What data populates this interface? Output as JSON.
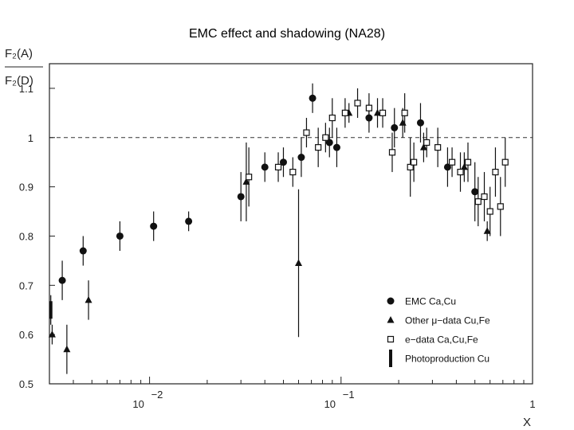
{
  "slide_title": "EMC effect and shadowing (NA28)",
  "chart_data": {
    "type": "scatter",
    "title": "EMC effect and shadowing (NA28)",
    "ylabel_numerator": "F₂(A)",
    "ylabel_denominator": "F₂(D)",
    "xlabel": "X",
    "x_scale": "log",
    "xlim": [
      0.003,
      1.0
    ],
    "ylim": [
      0.5,
      1.15
    ],
    "y_ticks": [
      {
        "v": 0.5,
        "label": "0.5"
      },
      {
        "v": 0.6,
        "label": "0.6"
      },
      {
        "v": 0.7,
        "label": "0.7"
      },
      {
        "v": 0.8,
        "label": "0.8"
      },
      {
        "v": 0.9,
        "label": "0.9"
      },
      {
        "v": 1.0,
        "label": "1"
      },
      {
        "v": 1.1,
        "label": "1.1"
      }
    ],
    "x_ticks": [
      {
        "v": 0.01,
        "base": "10",
        "exp": "−2"
      },
      {
        "v": 0.1,
        "base": "10",
        "exp": "−1"
      },
      {
        "v": 1.0,
        "base": "1",
        "exp": ""
      }
    ],
    "reference_line": 1.0,
    "legend": [
      {
        "marker": "circle",
        "label": "EMC  Ca,Cu"
      },
      {
        "marker": "triangle",
        "label": "Other μ−data  Cu,Fe"
      },
      {
        "marker": "square",
        "label": "e−data  Ca,Cu,Fe"
      },
      {
        "marker": "bar",
        "label": "Photoproduction  Cu"
      }
    ],
    "series": [
      {
        "name": "EMC  Ca,Cu",
        "marker": "circle",
        "points": [
          {
            "x": 0.0035,
            "y": 0.71,
            "err": 0.04
          },
          {
            "x": 0.0045,
            "y": 0.77,
            "err": 0.03
          },
          {
            "x": 0.007,
            "y": 0.8,
            "err": 0.03
          },
          {
            "x": 0.0105,
            "y": 0.82,
            "err": 0.03
          },
          {
            "x": 0.016,
            "y": 0.83,
            "err": 0.02
          },
          {
            "x": 0.03,
            "y": 0.88,
            "err": 0.05
          },
          {
            "x": 0.04,
            "y": 0.94,
            "err": 0.03
          },
          {
            "x": 0.05,
            "y": 0.95,
            "err": 0.03
          },
          {
            "x": 0.062,
            "y": 0.96,
            "err": 0.04
          },
          {
            "x": 0.071,
            "y": 1.08,
            "err": 0.03
          },
          {
            "x": 0.087,
            "y": 0.99,
            "err": 0.03
          },
          {
            "x": 0.095,
            "y": 0.98,
            "err": 0.04
          },
          {
            "x": 0.14,
            "y": 1.04,
            "err": 0.03
          },
          {
            "x": 0.19,
            "y": 1.02,
            "err": 0.04
          },
          {
            "x": 0.26,
            "y": 1.03,
            "err": 0.04
          },
          {
            "x": 0.36,
            "y": 0.94,
            "err": 0.04
          },
          {
            "x": 0.5,
            "y": 0.89,
            "err": 0.06
          }
        ]
      },
      {
        "name": "Other μ−data  Cu,Fe",
        "marker": "triangle",
        "points": [
          {
            "x": 0.0031,
            "y": 0.6,
            "err": 0.02
          },
          {
            "x": 0.0037,
            "y": 0.57,
            "err": 0.05
          },
          {
            "x": 0.0048,
            "y": 0.67,
            "err": 0.04
          },
          {
            "x": 0.032,
            "y": 0.91,
            "err": 0.08
          },
          {
            "x": 0.06,
            "y": 0.745,
            "err": 0.15
          },
          {
            "x": 0.11,
            "y": 1.05,
            "err": 0.02
          },
          {
            "x": 0.155,
            "y": 1.05,
            "err": 0.03
          },
          {
            "x": 0.21,
            "y": 1.03,
            "err": 0.03
          },
          {
            "x": 0.27,
            "y": 0.98,
            "err": 0.03
          },
          {
            "x": 0.44,
            "y": 0.94,
            "err": 0.03
          },
          {
            "x": 0.58,
            "y": 0.81,
            "err": 0.02
          }
        ]
      },
      {
        "name": "e−data  Ca,Cu,Fe",
        "marker": "square",
        "points": [
          {
            "x": 0.033,
            "y": 0.92,
            "err": 0.06
          },
          {
            "x": 0.047,
            "y": 0.94,
            "err": 0.03
          },
          {
            "x": 0.056,
            "y": 0.93,
            "err": 0.03
          },
          {
            "x": 0.066,
            "y": 1.01,
            "err": 0.03
          },
          {
            "x": 0.076,
            "y": 0.98,
            "err": 0.04
          },
          {
            "x": 0.083,
            "y": 1.0,
            "err": 0.03
          },
          {
            "x": 0.09,
            "y": 1.04,
            "err": 0.04
          },
          {
            "x": 0.105,
            "y": 1.05,
            "err": 0.03
          },
          {
            "x": 0.122,
            "y": 1.07,
            "err": 0.03
          },
          {
            "x": 0.14,
            "y": 1.06,
            "err": 0.03
          },
          {
            "x": 0.165,
            "y": 1.05,
            "err": 0.03
          },
          {
            "x": 0.185,
            "y": 0.97,
            "err": 0.04
          },
          {
            "x": 0.215,
            "y": 1.05,
            "err": 0.04
          },
          {
            "x": 0.23,
            "y": 0.94,
            "err": 0.06
          },
          {
            "x": 0.24,
            "y": 0.95,
            "err": 0.04
          },
          {
            "x": 0.28,
            "y": 0.99,
            "err": 0.03
          },
          {
            "x": 0.32,
            "y": 0.98,
            "err": 0.04
          },
          {
            "x": 0.38,
            "y": 0.95,
            "err": 0.03
          },
          {
            "x": 0.42,
            "y": 0.93,
            "err": 0.04
          },
          {
            "x": 0.46,
            "y": 0.95,
            "err": 0.04
          },
          {
            "x": 0.52,
            "y": 0.87,
            "err": 0.05
          },
          {
            "x": 0.56,
            "y": 0.88,
            "err": 0.05
          },
          {
            "x": 0.6,
            "y": 0.85,
            "err": 0.05
          },
          {
            "x": 0.64,
            "y": 0.93,
            "err": 0.05
          },
          {
            "x": 0.68,
            "y": 0.86,
            "err": 0.06
          },
          {
            "x": 0.72,
            "y": 0.95,
            "err": 0.05
          }
        ]
      },
      {
        "name": "Photoproduction  Cu",
        "marker": "bar",
        "points": [
          {
            "x": 0.00305,
            "y": 0.65,
            "err": 0.03
          }
        ]
      }
    ]
  }
}
